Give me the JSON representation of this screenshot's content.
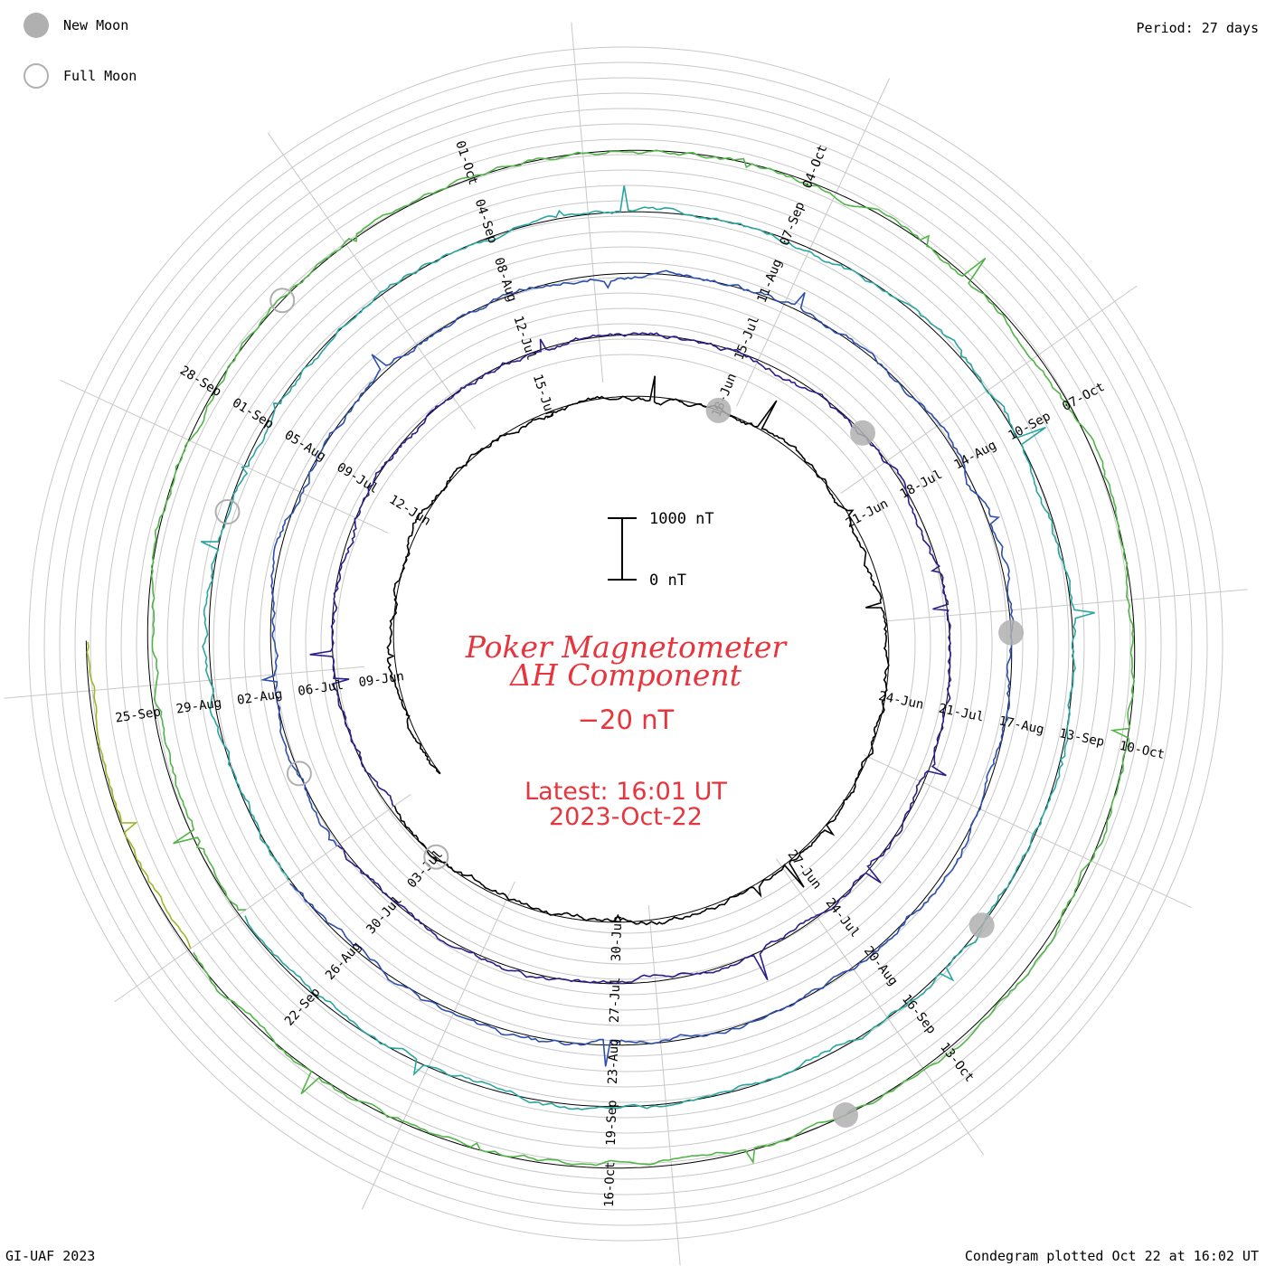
{
  "legend": {
    "new_moon_label": "New Moon",
    "full_moon_label": "Full Moon",
    "new_moon_color": "#b0b0b0",
    "full_moon_color": "#b0b0b0"
  },
  "period_label": "Period: 27 days",
  "footer_left": "GI-UAF 2023",
  "footer_right": "Condegram plotted Oct 22 at 16:02 UT",
  "title_line1": "Poker Magnetometer",
  "title_line2": "ΔH Component",
  "current_value": "−20 nT",
  "latest_line1": "Latest: 16:01 UT",
  "latest_line2": "2023-Oct-22",
  "title_color": "#e8343c",
  "scale_bar": {
    "top_label": "1000 nT",
    "bottom_label": "0 nT"
  },
  "chart_data": {
    "type": "line",
    "subtype": "condegram-spiral",
    "period_days": 27,
    "start_date": "2023-06-07",
    "end_date": "2023-10-22",
    "scale_nT": [
      0,
      1000
    ],
    "grid": true,
    "date_labels": [
      "09-Jun",
      "12-Jun",
      "15-Jun",
      "18-Jun",
      "21-Jun",
      "24-Jun",
      "27-Jun",
      "30-Jun",
      "03-Jul",
      "06-Jul",
      "09-Jul",
      "12-Jul",
      "15-Jul",
      "18-Jul",
      "21-Jul",
      "24-Jul",
      "27-Jul",
      "30-Jul",
      "02-Aug",
      "05-Aug",
      "08-Aug",
      "11-Aug",
      "14-Aug",
      "17-Aug",
      "20-Aug",
      "23-Aug",
      "26-Aug",
      "29-Aug",
      "01-Sep",
      "04-Sep",
      "07-Sep",
      "10-Sep",
      "13-Sep",
      "16-Sep",
      "19-Sep",
      "22-Sep",
      "25-Sep",
      "28-Sep",
      "01-Oct",
      "04-Oct",
      "07-Oct",
      "10-Oct",
      "13-Oct",
      "16-Oct"
    ],
    "new_moons": [
      "2023-06-18",
      "2023-07-17",
      "2023-08-16",
      "2023-09-15",
      "2023-10-14"
    ],
    "full_moons": [
      "2023-07-03",
      "2023-08-01",
      "2023-08-31",
      "2023-09-29"
    ],
    "ring_colors": [
      "#000000",
      "#2a1f8a",
      "#2d4fb0",
      "#2aa6a0",
      "#52b548",
      "#a3b52a",
      "#b8a020",
      "#c36a14",
      "#b81414"
    ]
  }
}
